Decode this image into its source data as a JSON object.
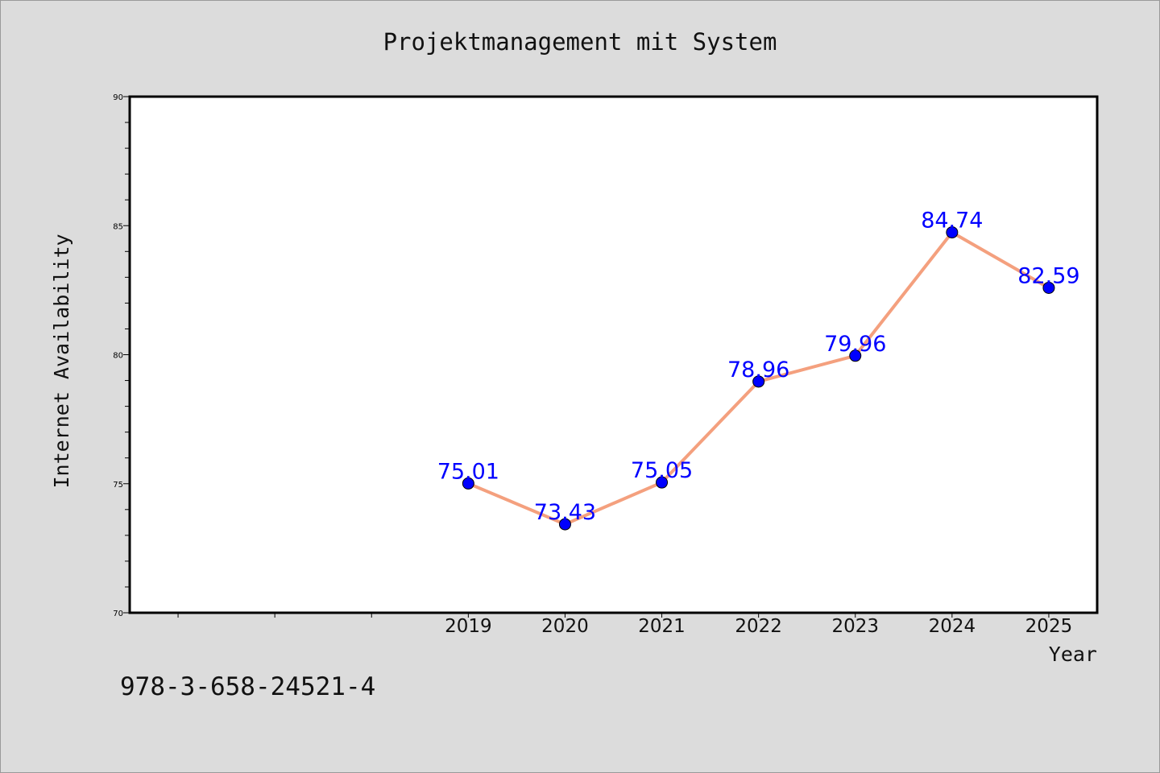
{
  "title": "Projektmanagement mit System",
  "isbn": "978-3-658-24521-4",
  "chart_data": {
    "type": "line",
    "title": "Projektmanagement mit System",
    "xlabel": "Year",
    "ylabel": "Internet Availability",
    "categories": [
      "2019",
      "2020",
      "2021",
      "2022",
      "2023",
      "2024",
      "2025"
    ],
    "x": [
      2019,
      2020,
      2021,
      2022,
      2023,
      2024,
      2025
    ],
    "series": [
      {
        "values": [
          75.01,
          73.43,
          75.05,
          78.96,
          79.96,
          84.74,
          82.59
        ],
        "labels": [
          "75.01",
          "73.43",
          "75.05",
          "78.96",
          "79.96",
          "84.74",
          "82.59"
        ]
      }
    ],
    "xlim": [
      2015.5,
      2025.5
    ],
    "ylim": [
      70,
      90
    ],
    "yticks": [
      70,
      75,
      80,
      85,
      90
    ],
    "grid": false,
    "line_color": "#f4a07e",
    "marker_color": "#0000ff",
    "label_color": "#0000ff",
    "background": "#dcdcdc",
    "plot_background": "#ffffff"
  }
}
